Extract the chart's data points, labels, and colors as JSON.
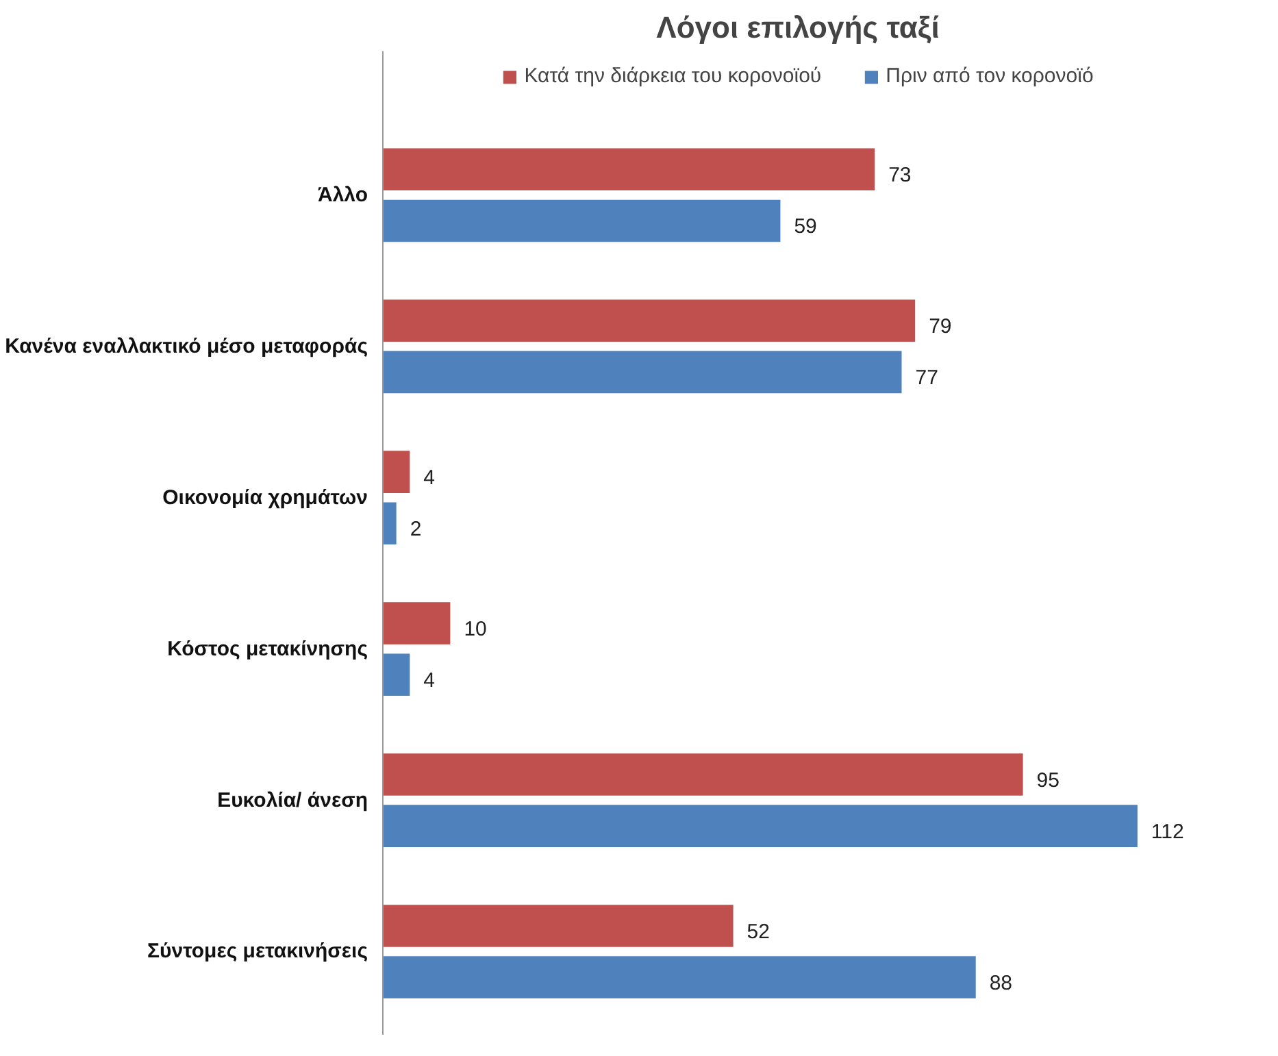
{
  "chart_data": {
    "type": "bar",
    "orientation": "horizontal",
    "title": "Λόγοι επιλογής ταξί",
    "categories": [
      "Άλλο",
      "Κανένα εναλλακτικό μέσο μεταφοράς",
      "Οικονομία χρημάτων",
      "Κόστος μετακίνησης",
      "Ευκολία/ άνεση",
      "Σύντομες μετακινήσεις"
    ],
    "series": [
      {
        "name": "Κατά την διάρκεια του κορονοϊού",
        "color": "#c0504d",
        "values": [
          73,
          79,
          4,
          10,
          95,
          52
        ]
      },
      {
        "name": "Πριν από τον κορονοϊό",
        "color": "#4f81bd",
        "values": [
          59,
          77,
          2,
          4,
          112,
          88
        ]
      }
    ],
    "data_labels": true,
    "legend": "top",
    "grid": false
  }
}
